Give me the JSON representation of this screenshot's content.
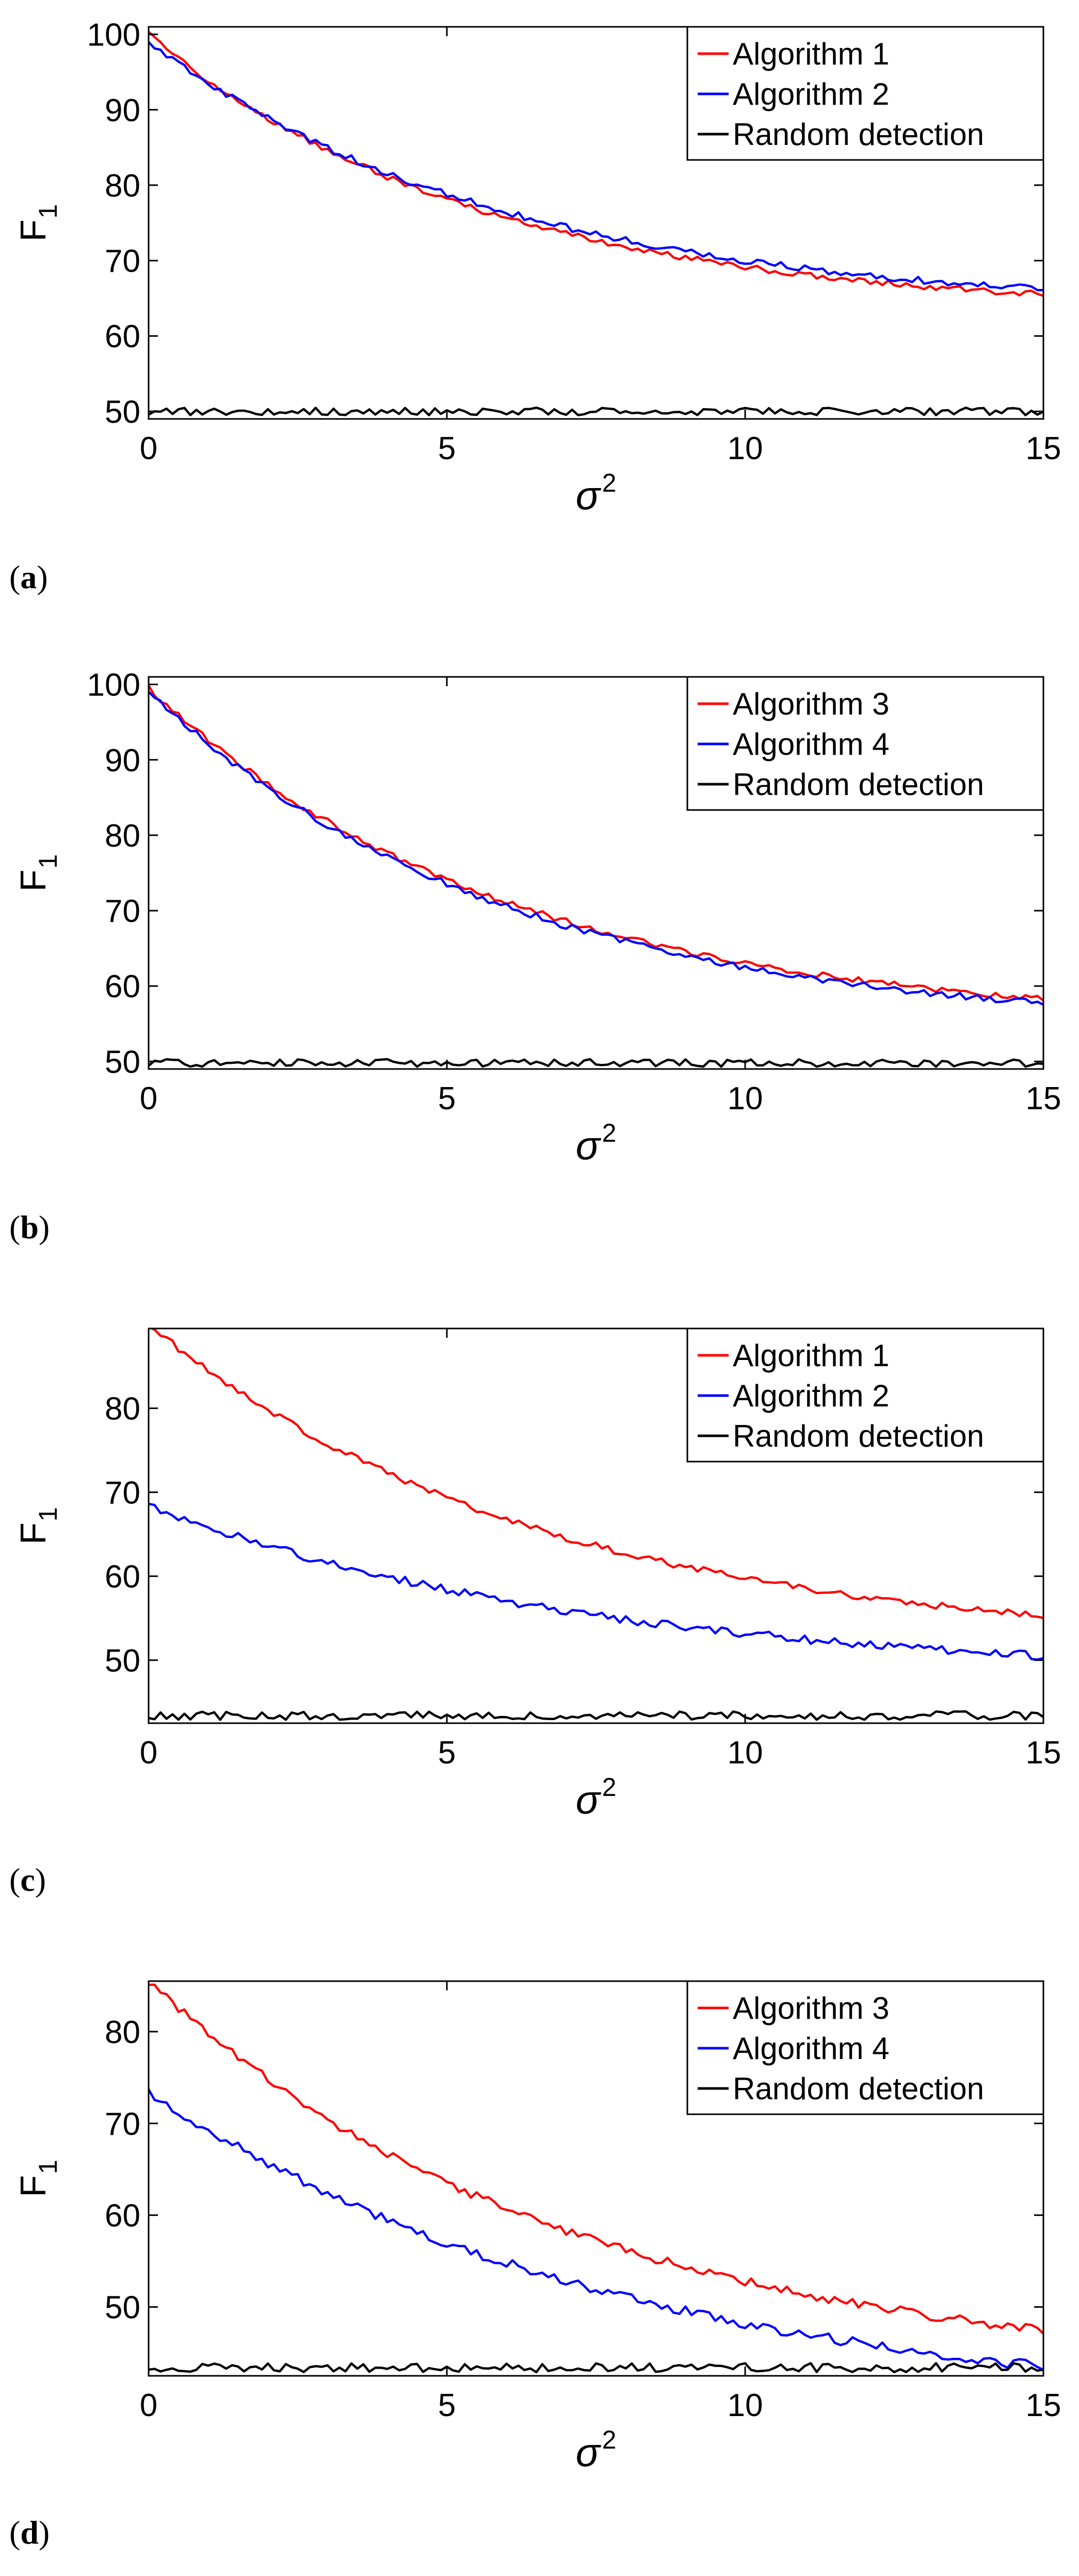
{
  "figure": {
    "panel_labels": [
      "(a)",
      "(b)",
      "(c)",
      "(d)"
    ]
  },
  "colors": {
    "red": "#ff0000",
    "blue": "#0000ff",
    "black": "#000000"
  },
  "chart_data": [
    {
      "type": "line",
      "panel": "a",
      "xlabel": "σ",
      "xlabel_sup": "2",
      "ylabel": "F",
      "ylabel_sub": "1",
      "xlim": [
        0,
        15
      ],
      "ylim": [
        49,
        101
      ],
      "xticks": [
        0,
        5,
        10,
        15
      ],
      "yticks": [
        50,
        60,
        70,
        80,
        90,
        100
      ],
      "legend_position": "top-right",
      "series": [
        {
          "name": "Algorithm 1",
          "color": "#ff0000",
          "y0": 100,
          "y15": 65.5,
          "k": 5.6,
          "noise": 0.4
        },
        {
          "name": "Algorithm 2",
          "color": "#0000ff",
          "y0": 99,
          "y15": 66.2,
          "k": 6.0,
          "noise": 0.45
        },
        {
          "name": "Random detection",
          "color": "#000000",
          "y0": 50,
          "y15": 50,
          "k": 1,
          "noise": 0.5
        }
      ]
    },
    {
      "type": "line",
      "panel": "b",
      "xlabel": "σ",
      "xlabel_sup": "2",
      "ylabel": "F",
      "ylabel_sub": "1",
      "xlim": [
        0,
        15
      ],
      "ylim": [
        49,
        101
      ],
      "xticks": [
        0,
        5,
        10,
        15
      ],
      "yticks": [
        50,
        60,
        70,
        80,
        90,
        100
      ],
      "legend_position": "top-right",
      "series": [
        {
          "name": "Algorithm 3",
          "color": "#ff0000",
          "y0": 99.5,
          "y15": 58.3,
          "k": 6.0,
          "noise": 0.4
        },
        {
          "name": "Algorithm 4",
          "color": "#0000ff",
          "y0": 99,
          "y15": 57.7,
          "k": 6.0,
          "noise": 0.45
        },
        {
          "name": "Random detection",
          "color": "#000000",
          "y0": 49.8,
          "y15": 49.8,
          "k": 1,
          "noise": 0.5
        }
      ]
    },
    {
      "type": "line",
      "panel": "c",
      "xlabel": "σ",
      "xlabel_sup": "2",
      "ylabel": "F",
      "ylabel_sub": "1",
      "xlim": [
        0,
        15
      ],
      "ylim": [
        42.5,
        89.5
      ],
      "xticks": [
        0,
        5,
        10,
        15
      ],
      "yticks": [
        50,
        60,
        70,
        80
      ],
      "legend_position": "top-right",
      "series": [
        {
          "name": "Algorithm 1",
          "color": "#ff0000",
          "y0": 90,
          "y15": 55.3,
          "k": 6.5,
          "noise": 0.4
        },
        {
          "name": "Algorithm 2",
          "color": "#0000ff",
          "y0": 68.5,
          "y15": 50.5,
          "k": 7.5,
          "noise": 0.5
        },
        {
          "name": "Random detection",
          "color": "#000000",
          "y0": 43.4,
          "y15": 43.4,
          "k": 1,
          "noise": 0.5
        }
      ]
    },
    {
      "type": "line",
      "panel": "d",
      "xlabel": "σ",
      "xlabel_sup": "2",
      "ylabel": "F",
      "ylabel_sub": "1",
      "xlim": [
        0,
        15
      ],
      "ylim": [
        42.5,
        85.5
      ],
      "xticks": [
        0,
        5,
        10,
        15
      ],
      "yticks": [
        50,
        60,
        70,
        80
      ],
      "legend_position": "top-right",
      "series": [
        {
          "name": "Algorithm 3",
          "color": "#ff0000",
          "y0": 85.5,
          "y15": 47.5,
          "k": 7.0,
          "noise": 0.5
        },
        {
          "name": "Algorithm 4",
          "color": "#0000ff",
          "y0": 73.5,
          "y15": 43.5,
          "k": 8.0,
          "noise": 0.55
        },
        {
          "name": "Random detection",
          "color": "#000000",
          "y0": 43.4,
          "y15": 43.4,
          "k": 1,
          "noise": 0.5
        }
      ]
    }
  ]
}
